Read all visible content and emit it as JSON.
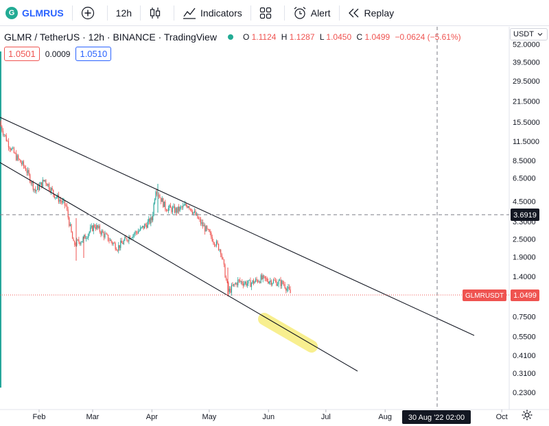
{
  "toolbar": {
    "symbol_badge": "G",
    "symbol": "GLMRUS",
    "interval": "12h",
    "indicators_label": "Indicators",
    "alert_label": "Alert",
    "replay_label": "Replay"
  },
  "legend": {
    "title": "GLMR / TetherUS · 12h · BINANCE · TradingView",
    "open_label": "O",
    "open": "1.1124",
    "high_label": "H",
    "high": "1.1287",
    "low_label": "L",
    "low": "1.0450",
    "close_label": "C",
    "close": "1.0499",
    "change": "−0.0624 (−5.61%)"
  },
  "spread": {
    "sell": "1.0501",
    "spread": "0.0009",
    "buy": "1.0510"
  },
  "price_axis": {
    "currency": "USDT"
  },
  "crosshair": {
    "price_label": "3.6919",
    "time_label": "30 Aug '22  02:00"
  },
  "last_price": {
    "label": "GLMRUSDT",
    "value": "1.0499"
  },
  "colors": {
    "up": "#26a69a",
    "down": "#ef5350",
    "accent": "#2962ff",
    "highlight": "#f5ea6a"
  },
  "chart_data": {
    "type": "candlestick",
    "y_scale": "log",
    "y_ticks": [
      "52.0000",
      "39.5000",
      "29.5000",
      "21.5000",
      "15.5000",
      "11.5000",
      "8.5000",
      "6.5000",
      "4.5000",
      "3.3000",
      "2.5000",
      "1.9000",
      "1.4000",
      "0.7500",
      "0.5500",
      "0.4100",
      "0.3100",
      "0.2300"
    ],
    "x_ticks": [
      "Feb",
      "Mar",
      "Apr",
      "May",
      "Jun",
      "Jul",
      "Aug",
      "Oct"
    ],
    "series": [
      {
        "t": "2022-01-12",
        "close": 14.5
      },
      {
        "t": "2022-01-16",
        "close": 11.0
      },
      {
        "t": "2022-01-20",
        "close": 9.0
      },
      {
        "t": "2022-01-25",
        "close": 7.5
      },
      {
        "t": "2022-01-30",
        "close": 5.3
      },
      {
        "t": "2022-02-04",
        "close": 6.3
      },
      {
        "t": "2022-02-09",
        "close": 5.0
      },
      {
        "t": "2022-02-15",
        "close": 4.2
      },
      {
        "t": "2022-02-19",
        "close": 2.3
      },
      {
        "t": "2022-02-24",
        "close": 2.5
      },
      {
        "t": "2022-03-02",
        "close": 3.1
      },
      {
        "t": "2022-03-08",
        "close": 2.6
      },
      {
        "t": "2022-03-14",
        "close": 2.2
      },
      {
        "t": "2022-03-20",
        "close": 2.6
      },
      {
        "t": "2022-03-26",
        "close": 2.9
      },
      {
        "t": "2022-04-01",
        "close": 3.4
      },
      {
        "t": "2022-04-03",
        "close": 5.5
      },
      {
        "t": "2022-04-08",
        "close": 4.1
      },
      {
        "t": "2022-04-14",
        "close": 3.9
      },
      {
        "t": "2022-04-20",
        "close": 4.3
      },
      {
        "t": "2022-04-26",
        "close": 3.3
      },
      {
        "t": "2022-05-02",
        "close": 2.6
      },
      {
        "t": "2022-05-07",
        "close": 2.1
      },
      {
        "t": "2022-05-11",
        "close": 1.1
      },
      {
        "t": "2022-05-16",
        "close": 1.3
      },
      {
        "t": "2022-05-22",
        "close": 1.25
      },
      {
        "t": "2022-05-28",
        "close": 1.35
      },
      {
        "t": "2022-06-03",
        "close": 1.3
      },
      {
        "t": "2022-06-09",
        "close": 1.25
      },
      {
        "t": "2022-06-13",
        "close": 1.05
      }
    ]
  }
}
